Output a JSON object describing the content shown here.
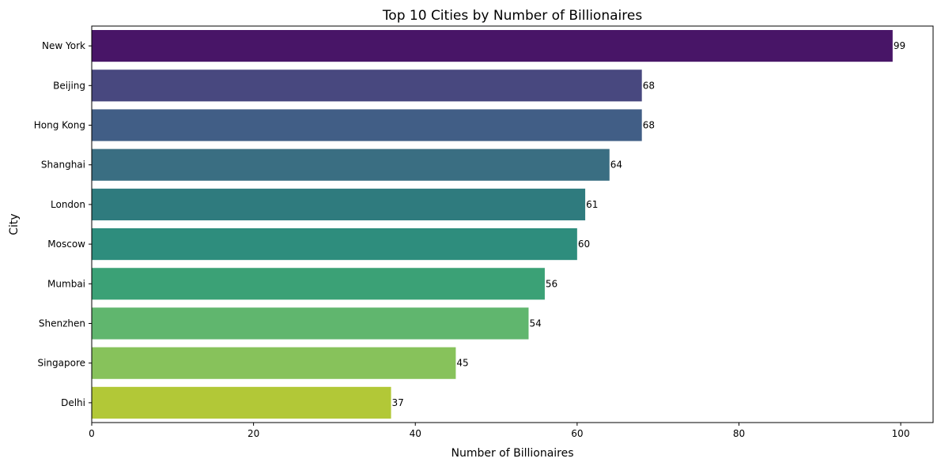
{
  "chart_data": {
    "type": "bar",
    "orientation": "horizontal",
    "title": "Top 10 Cities by Number of Billionaires",
    "xlabel": "Number of Billionaires",
    "ylabel": "City",
    "xlim": [
      0,
      104
    ],
    "xticks": [
      0,
      20,
      40,
      60,
      80,
      100
    ],
    "grid": false,
    "categories": [
      "New York",
      "Beijing",
      "Hong Kong",
      "Shanghai",
      "London",
      "Moscow",
      "Mumbai",
      "Shenzhen",
      "Singapore",
      "Delhi"
    ],
    "values": [
      99,
      68,
      68,
      64,
      61,
      60,
      56,
      54,
      45,
      37
    ],
    "colors": [
      "#481567",
      "#48487f",
      "#415e86",
      "#3a6e82",
      "#2f7b7e",
      "#2e8d7d",
      "#3ba176",
      "#60b66e",
      "#87c25b",
      "#b2c837"
    ],
    "data_labels": [
      "99",
      "68",
      "68",
      "64",
      "61",
      "60",
      "56",
      "54",
      "45",
      "37"
    ]
  }
}
